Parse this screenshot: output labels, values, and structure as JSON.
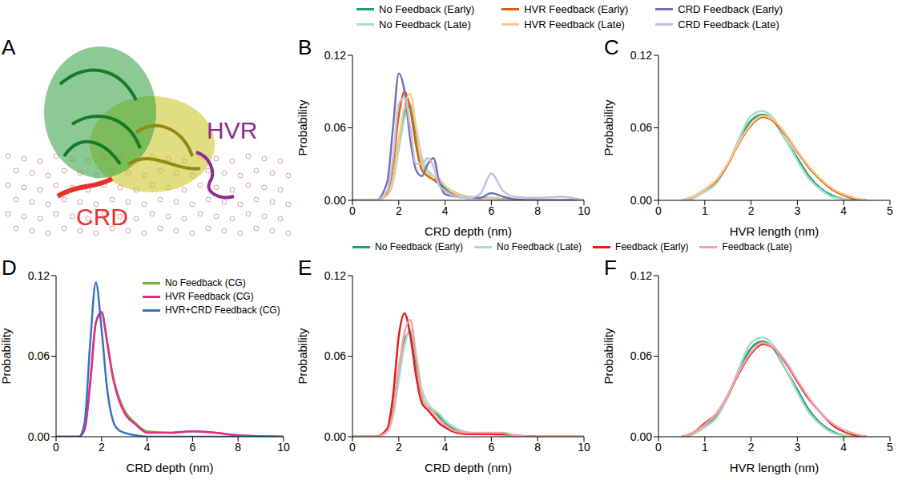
{
  "chart_data": [
    {
      "type": "diagram",
      "panel": "A",
      "labels": [
        {
          "text": "CRD",
          "color": "#e8312c"
        },
        {
          "text": "HVR",
          "color": "#8e2c8e"
        }
      ]
    },
    {
      "type": "line",
      "panel": "B",
      "xlabel": "CRD depth (nm)",
      "ylabel": "Probability",
      "xlim": [
        0,
        10
      ],
      "xticks": [
        0,
        2,
        4,
        6,
        8,
        10
      ],
      "ylim": [
        0,
        0.12
      ],
      "yticks": [
        {
          "value": 0,
          "label": "0.00"
        },
        {
          "value": 0.06,
          "label": "0.06"
        },
        {
          "value": 0.12,
          "label": "0.12"
        }
      ],
      "legend": "top",
      "x": [
        0,
        1,
        1.5,
        1.75,
        2,
        2.25,
        2.5,
        2.75,
        3,
        3.25,
        3.5,
        3.75,
        4,
        4.5,
        5,
        5.5,
        6,
        6.5,
        7,
        8,
        9,
        10
      ],
      "series": [
        {
          "name": "No Feedback (Early)",
          "color": "#1b9e77",
          "values": [
            0,
            0,
            0.005,
            0.02,
            0.05,
            0.072,
            0.078,
            0.055,
            0.03,
            0.022,
            0.02,
            0.015,
            0.01,
            0.005,
            0.003,
            0.002,
            0.002,
            0.001,
            0,
            0,
            0,
            0
          ]
        },
        {
          "name": "No Feedback (Late)",
          "color": "#a8dcc9",
          "values": [
            0,
            0,
            0.004,
            0.015,
            0.042,
            0.068,
            0.08,
            0.06,
            0.035,
            0.025,
            0.02,
            0.017,
            0.012,
            0.006,
            0.003,
            0.002,
            0.002,
            0.001,
            0,
            0,
            0,
            0
          ]
        },
        {
          "name": "HVR Feedback (Early)",
          "color": "#d95f02",
          "values": [
            0,
            0,
            0.006,
            0.03,
            0.07,
            0.09,
            0.075,
            0.045,
            0.025,
            0.02,
            0.017,
            0.013,
            0.008,
            0.004,
            0.002,
            0.002,
            0.001,
            0,
            0,
            0,
            0,
            0
          ]
        },
        {
          "name": "HVR Feedback (Late)",
          "color": "#fdc78f",
          "values": [
            0,
            0,
            0.004,
            0.018,
            0.05,
            0.078,
            0.088,
            0.06,
            0.03,
            0.022,
            0.02,
            0.018,
            0.012,
            0.005,
            0.003,
            0.002,
            0.001,
            0,
            0,
            0,
            0,
            0
          ]
        },
        {
          "name": "CRD Feedback (Early)",
          "color": "#7570b3",
          "values": [
            0,
            0,
            0.015,
            0.06,
            0.105,
            0.09,
            0.05,
            0.025,
            0.02,
            0.03,
            0.035,
            0.015,
            0.005,
            0.003,
            0.002,
            0.002,
            0.006,
            0.003,
            0.001,
            0,
            0,
            0
          ]
        },
        {
          "name": "CRD Feedback (Late)",
          "color": "#c3c1e3",
          "values": [
            0,
            0,
            0.008,
            0.035,
            0.08,
            0.085,
            0.06,
            0.03,
            0.03,
            0.035,
            0.028,
            0.012,
            0.008,
            0.003,
            0.002,
            0.005,
            0.022,
            0.008,
            0.003,
            0.002,
            0.003,
            0
          ]
        }
      ]
    },
    {
      "type": "line",
      "panel": "C",
      "xlabel": "HVR length (nm)",
      "ylabel": "Probability",
      "xlim": [
        0,
        5
      ],
      "xticks": [
        0,
        1,
        2,
        3,
        4,
        5
      ],
      "ylim": [
        0,
        0.12
      ],
      "yticks": [
        {
          "value": 0,
          "label": "0.00"
        },
        {
          "value": 0.06,
          "label": "0.06"
        },
        {
          "value": 0.12,
          "label": "0.12"
        }
      ],
      "legend": "top",
      "x": [
        0.5,
        0.75,
        1,
        1.25,
        1.5,
        1.75,
        2,
        2.25,
        2.5,
        2.75,
        3,
        3.25,
        3.5,
        3.75,
        4,
        4.25,
        4.5
      ],
      "series": [
        {
          "name": "No Feedback (Early)",
          "color": "#1b9e77",
          "values": [
            0,
            0.002,
            0.008,
            0.015,
            0.03,
            0.05,
            0.066,
            0.071,
            0.065,
            0.05,
            0.035,
            0.02,
            0.01,
            0.004,
            0.001,
            0,
            0
          ]
        },
        {
          "name": "No Feedback (Late)",
          "color": "#a8dcc9",
          "values": [
            0,
            0.002,
            0.007,
            0.014,
            0.03,
            0.052,
            0.07,
            0.074,
            0.067,
            0.05,
            0.033,
            0.018,
            0.009,
            0.003,
            0.001,
            0,
            0
          ]
        },
        {
          "name": "HVR Feedback (Early)",
          "color": "#d95f02",
          "values": [
            0,
            0.003,
            0.009,
            0.016,
            0.03,
            0.048,
            0.062,
            0.069,
            0.065,
            0.054,
            0.04,
            0.027,
            0.017,
            0.009,
            0.004,
            0.001,
            0
          ]
        },
        {
          "name": "HVR Feedback (Late)",
          "color": "#fdc78f",
          "values": [
            0,
            0.003,
            0.009,
            0.017,
            0.031,
            0.049,
            0.063,
            0.07,
            0.066,
            0.055,
            0.041,
            0.028,
            0.018,
            0.01,
            0.005,
            0.002,
            0
          ]
        }
      ]
    },
    {
      "type": "line",
      "panel": "D",
      "xlabel": "CRD depth (nm)",
      "ylabel": "Probability",
      "xlim": [
        0,
        10
      ],
      "xticks": [
        0,
        2,
        4,
        6,
        8,
        10
      ],
      "ylim": [
        0,
        0.12
      ],
      "yticks": [
        {
          "value": 0,
          "label": "0.00"
        },
        {
          "value": 0.06,
          "label": "0.06"
        },
        {
          "value": 0.12,
          "label": "0.12"
        }
      ],
      "legend": "top-right",
      "x": [
        0,
        1,
        1.25,
        1.5,
        1.75,
        2,
        2.25,
        2.5,
        2.75,
        3,
        3.5,
        4,
        5,
        6,
        7,
        8,
        10
      ],
      "series": [
        {
          "name": "No Feedback (CG)",
          "color": "#77b03b",
          "values": [
            0,
            0,
            0.005,
            0.04,
            0.085,
            0.092,
            0.07,
            0.045,
            0.03,
            0.02,
            0.01,
            0.004,
            0.003,
            0.004,
            0.003,
            0.001,
            0
          ]
        },
        {
          "name": "HVR Feedback (CG)",
          "color": "#e7298a",
          "values": [
            0,
            0,
            0.005,
            0.04,
            0.085,
            0.093,
            0.07,
            0.044,
            0.028,
            0.018,
            0.009,
            0.003,
            0.003,
            0.004,
            0.003,
            0.001,
            0
          ]
        },
        {
          "name": "HVR+CRD Feedback (CG)",
          "color": "#3a6fc9",
          "values": [
            0,
            0,
            0.01,
            0.07,
            0.115,
            0.08,
            0.035,
            0.012,
            0.005,
            0.003,
            0.001,
            0,
            0,
            0,
            0,
            0,
            0
          ]
        }
      ]
    },
    {
      "type": "line",
      "panel": "E",
      "xlabel": "CRD depth (nm)",
      "ylabel": "Probability",
      "xlim": [
        0,
        10
      ],
      "xticks": [
        0,
        2,
        4,
        6,
        8,
        10
      ],
      "ylim": [
        0,
        0.12
      ],
      "yticks": [
        {
          "value": 0,
          "label": "0.00"
        },
        {
          "value": 0.06,
          "label": "0.06"
        },
        {
          "value": 0.12,
          "label": "0.12"
        }
      ],
      "legend": "top",
      "x": [
        0,
        1,
        1.5,
        1.75,
        2,
        2.25,
        2.5,
        2.75,
        3,
        3.25,
        3.5,
        3.75,
        4,
        4.5,
        5,
        5.5,
        6,
        6.5,
        7,
        8,
        9,
        10
      ],
      "series": [
        {
          "name": "No Feedback (Early)",
          "color": "#1b9e77",
          "values": [
            0,
            0,
            0.005,
            0.02,
            0.05,
            0.072,
            0.078,
            0.055,
            0.03,
            0.022,
            0.02,
            0.015,
            0.01,
            0.005,
            0.003,
            0.002,
            0.002,
            0.001,
            0,
            0,
            0,
            0
          ]
        },
        {
          "name": "No Feedback (Late)",
          "color": "#a8dcc9",
          "values": [
            0,
            0,
            0.004,
            0.015,
            0.042,
            0.068,
            0.08,
            0.06,
            0.035,
            0.025,
            0.02,
            0.017,
            0.012,
            0.006,
            0.003,
            0.002,
            0.002,
            0.001,
            0,
            0,
            0,
            0
          ]
        },
        {
          "name": "Feedback (Early)",
          "color": "#e41a1c",
          "values": [
            0,
            0,
            0.006,
            0.03,
            0.075,
            0.092,
            0.075,
            0.045,
            0.025,
            0.02,
            0.015,
            0.01,
            0.007,
            0.003,
            0.002,
            0.002,
            0.002,
            0.002,
            0.001,
            0,
            0,
            0
          ]
        },
        {
          "name": "Feedback (Late)",
          "color": "#f4a3a3",
          "values": [
            0,
            0,
            0.004,
            0.018,
            0.05,
            0.078,
            0.087,
            0.06,
            0.03,
            0.022,
            0.018,
            0.013,
            0.009,
            0.004,
            0.003,
            0.003,
            0.003,
            0.003,
            0.001,
            0,
            0,
            0
          ]
        }
      ]
    },
    {
      "type": "line",
      "panel": "F",
      "xlabel": "HVR length (nm)",
      "ylabel": "Probability",
      "xlim": [
        0,
        5
      ],
      "xticks": [
        0,
        1,
        2,
        3,
        4,
        5
      ],
      "ylim": [
        0,
        0.12
      ],
      "yticks": [
        {
          "value": 0,
          "label": "0.00"
        },
        {
          "value": 0.06,
          "label": "0.06"
        },
        {
          "value": 0.12,
          "label": "0.12"
        }
      ],
      "legend": "top",
      "x": [
        0.5,
        0.75,
        1,
        1.25,
        1.5,
        1.75,
        2,
        2.25,
        2.5,
        2.75,
        3,
        3.25,
        3.5,
        3.75,
        4,
        4.25,
        4.5
      ],
      "series": [
        {
          "name": "No Feedback (Early)",
          "color": "#1b9e77",
          "values": [
            0,
            0.002,
            0.008,
            0.015,
            0.03,
            0.05,
            0.066,
            0.071,
            0.065,
            0.05,
            0.035,
            0.02,
            0.01,
            0.004,
            0.001,
            0,
            0
          ]
        },
        {
          "name": "No Feedback (Late)",
          "color": "#a8dcc9",
          "values": [
            0,
            0.002,
            0.007,
            0.014,
            0.03,
            0.052,
            0.07,
            0.074,
            0.067,
            0.05,
            0.033,
            0.018,
            0.009,
            0.003,
            0.001,
            0,
            0
          ]
        },
        {
          "name": "Feedback (Early)",
          "color": "#e41a1c",
          "values": [
            0,
            0.003,
            0.01,
            0.017,
            0.031,
            0.048,
            0.062,
            0.069,
            0.066,
            0.055,
            0.041,
            0.028,
            0.018,
            0.009,
            0.004,
            0.001,
            0
          ]
        },
        {
          "name": "Feedback (Late)",
          "color": "#f4a3a3",
          "values": [
            0,
            0.003,
            0.009,
            0.017,
            0.031,
            0.049,
            0.063,
            0.07,
            0.066,
            0.056,
            0.042,
            0.029,
            0.018,
            0.01,
            0.005,
            0.002,
            0
          ]
        }
      ]
    }
  ]
}
